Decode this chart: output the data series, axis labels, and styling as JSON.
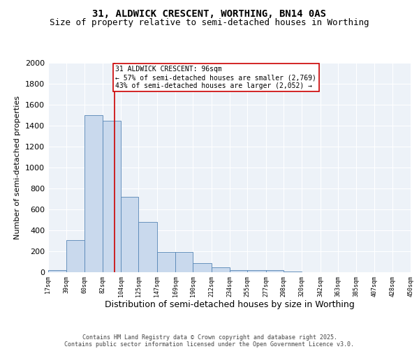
{
  "title1": "31, ALDWICK CRESCENT, WORTHING, BN14 0AS",
  "title2": "Size of property relative to semi-detached houses in Worthing",
  "xlabel": "Distribution of semi-detached houses by size in Worthing",
  "ylabel": "Number of semi-detached properties",
  "bar_edges": [
    17,
    39,
    60,
    82,
    104,
    125,
    147,
    169,
    190,
    212,
    234,
    255,
    277,
    298,
    320,
    342,
    363,
    385,
    407,
    428,
    450
  ],
  "bar_heights": [
    20,
    310,
    1500,
    1450,
    720,
    480,
    195,
    195,
    90,
    45,
    20,
    20,
    20,
    5,
    3,
    2,
    2,
    2,
    2,
    2
  ],
  "bar_color": "#c9d9ed",
  "bar_edge_color": "#5585b5",
  "property_value": 96,
  "red_line_color": "#cc0000",
  "annotation_line1": "31 ALDWICK CRESCENT: 96sqm",
  "annotation_line2": "← 57% of semi-detached houses are smaller (2,769)",
  "annotation_line3": "43% of semi-detached houses are larger (2,052) →",
  "annotation_box_color": "#cc0000",
  "ylim": [
    0,
    2000
  ],
  "yticks": [
    0,
    200,
    400,
    600,
    800,
    1000,
    1200,
    1400,
    1600,
    1800,
    2000
  ],
  "tick_labels": [
    "17sqm",
    "39sqm",
    "60sqm",
    "82sqm",
    "104sqm",
    "125sqm",
    "147sqm",
    "169sqm",
    "190sqm",
    "212sqm",
    "234sqm",
    "255sqm",
    "277sqm",
    "298sqm",
    "320sqm",
    "342sqm",
    "363sqm",
    "385sqm",
    "407sqm",
    "428sqm",
    "450sqm"
  ],
  "footer_line1": "Contains HM Land Registry data © Crown copyright and database right 2025.",
  "footer_line2": "Contains public sector information licensed under the Open Government Licence v3.0.",
  "bg_color": "#edf2f8",
  "grid_color": "#ffffff",
  "title_fontsize": 10,
  "subtitle_fontsize": 9,
  "ylabel_fontsize": 8,
  "xlabel_fontsize": 9,
  "ytick_fontsize": 8,
  "xtick_fontsize": 6,
  "footer_fontsize": 6,
  "annotation_fontsize": 7
}
